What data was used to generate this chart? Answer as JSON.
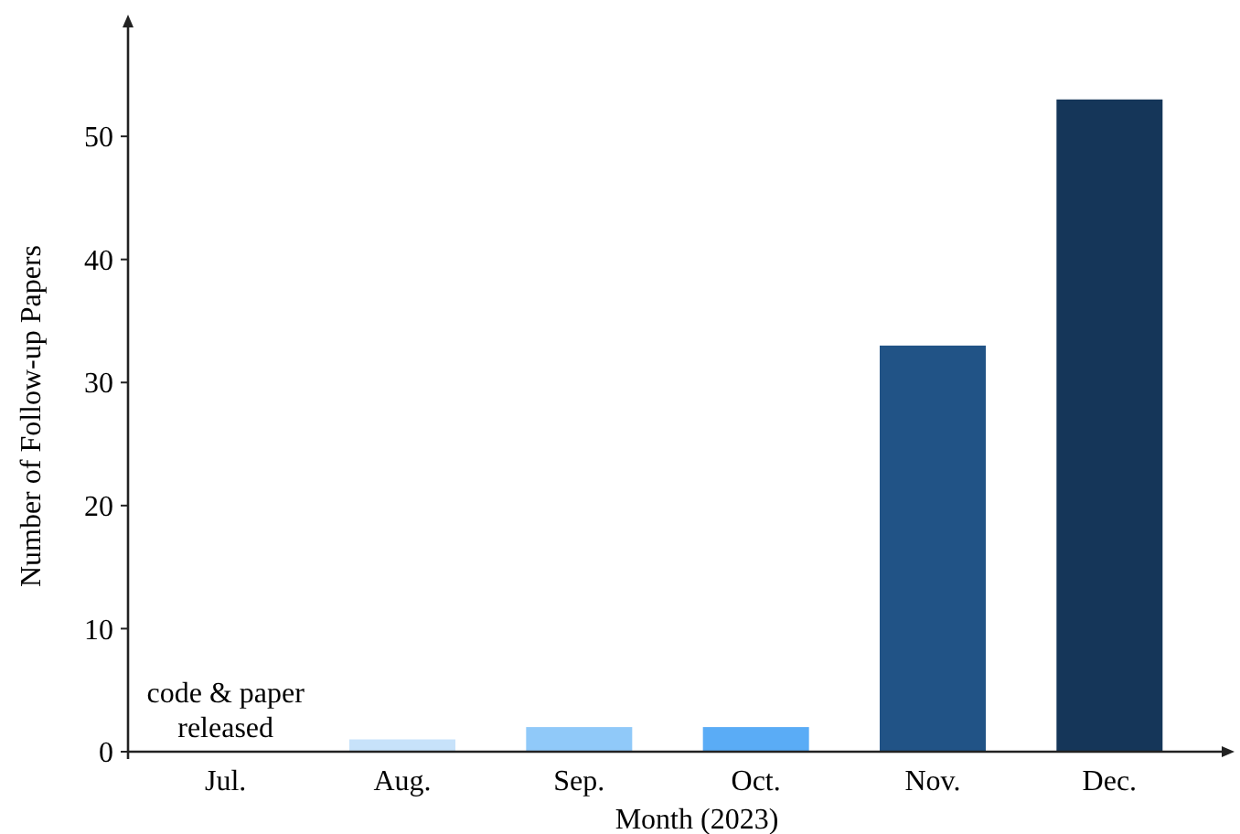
{
  "chart_data": {
    "type": "bar",
    "xlabel": "Month (2023)",
    "ylabel": "Number of Follow-up Papers",
    "categories": [
      "Jul.",
      "Aug.",
      "Sep.",
      "Oct.",
      "Nov.",
      "Dec."
    ],
    "values": [
      0,
      1,
      2,
      2,
      33,
      53
    ],
    "colors": [
      "#cfe5fa",
      "#c7e2fa",
      "#90c9f9",
      "#5aacf6",
      "#215386",
      "#153659"
    ],
    "ylim": [
      0,
      59
    ],
    "yticks": [
      0,
      10,
      20,
      30,
      40,
      50
    ],
    "grid": false,
    "annotations": [
      {
        "text": "code & paper released",
        "x": "Jul.",
        "y": 0
      }
    ]
  }
}
